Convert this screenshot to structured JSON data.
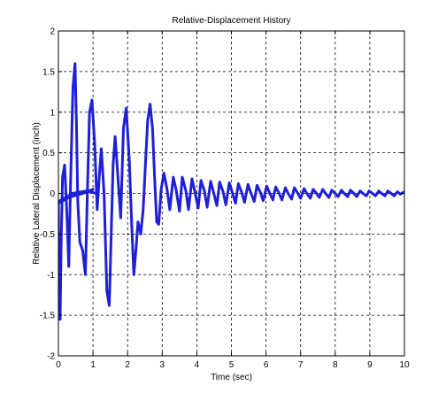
{
  "chart_data": {
    "type": "line",
    "title": "Relative-Displacement History",
    "xlabel": "Time (sec)",
    "ylabel": "Relative Lateral Displacement (inch)",
    "xlim": [
      0,
      10
    ],
    "ylim": [
      -2,
      2
    ],
    "xticks": [
      0,
      1,
      2,
      3,
      4,
      5,
      6,
      7,
      8,
      9,
      10
    ],
    "yticks": [
      -2,
      -1.5,
      -1,
      -0.5,
      0,
      0.5,
      1,
      1.5,
      2
    ],
    "xtick_labels": [
      "0",
      "1",
      "2",
      "3",
      "4",
      "5",
      "6",
      "7",
      "8",
      "9",
      "10"
    ],
    "ytick_labels": [
      "-2",
      "-1.5",
      "-1",
      "-0.5",
      "0",
      "0.5",
      "1",
      "1.5",
      "2"
    ],
    "grid": true,
    "grid_style": "dashed",
    "line_color": "#1f1fd6",
    "series": [
      {
        "x": [
          0.0,
          0.02,
          0.05,
          0.08,
          0.12,
          0.18,
          0.25,
          0.3,
          0.35,
          0.42,
          0.48,
          0.52,
          0.56,
          0.62,
          0.7,
          0.78,
          0.84,
          0.9,
          0.97,
          1.05,
          1.12,
          1.18,
          1.24,
          1.32,
          1.4,
          1.47,
          1.52,
          1.58,
          1.64,
          1.72,
          1.8,
          1.88,
          1.96,
          2.05,
          2.12,
          2.18,
          2.24,
          2.3,
          2.38,
          2.45,
          2.52,
          2.58,
          2.65,
          2.72,
          2.78,
          2.84,
          2.9,
          2.97,
          3.05,
          3.14,
          3.22,
          3.32,
          3.4,
          3.5,
          3.58,
          3.68,
          3.76,
          3.86,
          3.94,
          4.04,
          4.12,
          4.22,
          4.3,
          4.4,
          4.48,
          4.58,
          4.66,
          4.76,
          4.84,
          4.94,
          5.02,
          5.12,
          5.2,
          5.3,
          5.38,
          5.48,
          5.56,
          5.66,
          5.74,
          5.84,
          5.92,
          6.02,
          6.1,
          6.2,
          6.28,
          6.38,
          6.46,
          6.56,
          6.64,
          6.74,
          6.82,
          6.92,
          7.0,
          7.1,
          7.18,
          7.28,
          7.36,
          7.46,
          7.54,
          7.64,
          7.72,
          7.82,
          7.9,
          8.0,
          8.08,
          8.18,
          8.26,
          8.36,
          8.44,
          8.54,
          8.62,
          8.72,
          8.8,
          8.9,
          8.98,
          9.08,
          9.16,
          9.26,
          9.34,
          9.44,
          9.52,
          9.62,
          9.7,
          9.8,
          9.88,
          10.0
        ],
        "y": [
          -0.12,
          -1.3,
          -1.55,
          -0.6,
          0.2,
          0.35,
          -0.3,
          -0.9,
          0.1,
          1.3,
          1.6,
          0.9,
          -0.1,
          -0.6,
          -0.7,
          -1.0,
          0.05,
          1.0,
          1.15,
          0.6,
          -0.2,
          0.2,
          0.55,
          0.0,
          -1.2,
          -1.38,
          -0.6,
          0.35,
          0.7,
          0.2,
          -0.3,
          0.8,
          1.05,
          0.4,
          -0.4,
          -1.0,
          -0.7,
          -0.35,
          -0.5,
          -0.2,
          0.4,
          0.9,
          1.1,
          0.8,
          0.2,
          -0.35,
          -0.38,
          0.05,
          0.25,
          0.05,
          -0.2,
          0.2,
          0.05,
          -0.22,
          0.2,
          0.04,
          -0.2,
          0.18,
          0.03,
          -0.18,
          0.16,
          0.03,
          -0.17,
          0.15,
          0.02,
          -0.15,
          0.14,
          0.02,
          -0.14,
          0.13,
          0.02,
          -0.12,
          0.12,
          0.01,
          -0.11,
          0.11,
          0.01,
          -0.1,
          0.1,
          0.01,
          -0.09,
          0.09,
          0.01,
          -0.08,
          0.08,
          0.0,
          -0.08,
          0.07,
          0.0,
          -0.07,
          0.07,
          0.0,
          -0.06,
          0.06,
          0.0,
          -0.06,
          0.05,
          0.0,
          -0.05,
          0.05,
          0.0,
          -0.05,
          0.04,
          0.0,
          -0.04,
          0.04,
          0.0,
          -0.04,
          0.04,
          0.0,
          -0.04,
          0.03,
          0.0,
          -0.03,
          0.03,
          0.0,
          -0.03,
          0.03,
          0.0,
          -0.03,
          0.03,
          0.0,
          -0.03,
          0.02,
          -0.01,
          0.02
        ]
      },
      {
        "x": [
          0.0,
          0.3,
          0.7,
          1.0
        ],
        "y": [
          -0.12,
          -0.05,
          0.0,
          0.05
        ]
      },
      {
        "x": [
          0.0,
          0.4,
          0.8,
          1.1
        ],
        "y": [
          -0.1,
          0.0,
          0.03,
          0.0
        ]
      }
    ]
  }
}
